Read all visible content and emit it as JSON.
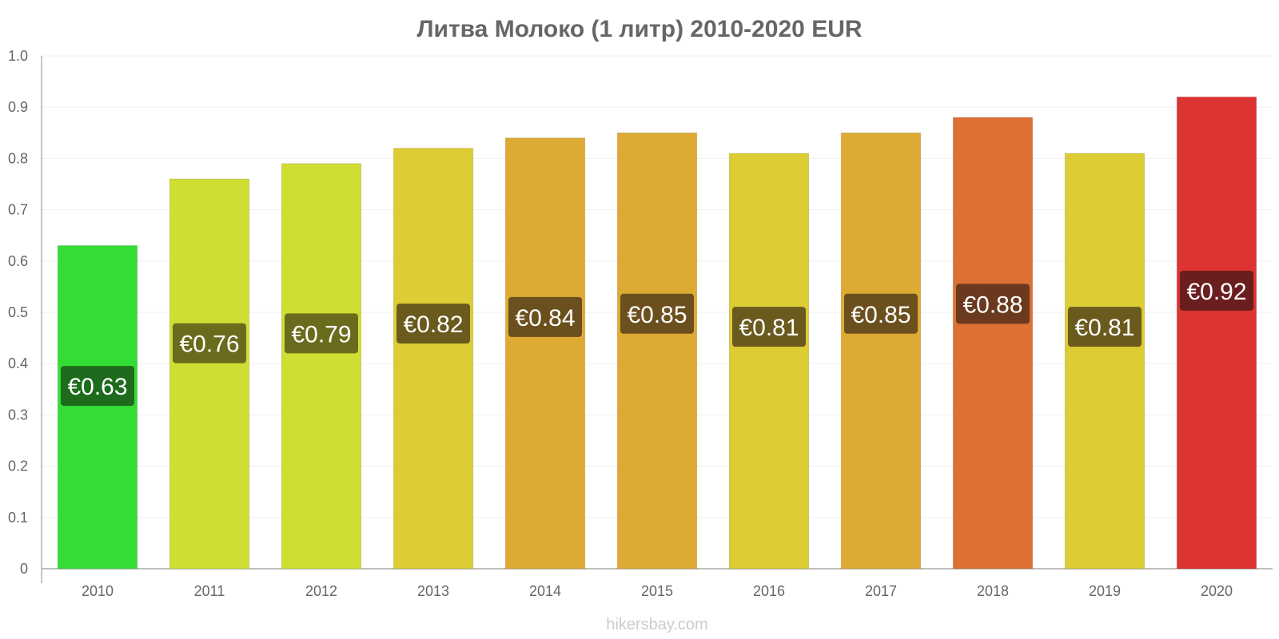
{
  "chart_data": {
    "type": "bar",
    "title": "Литва Молоко (1 литр) 2010-2020 EUR",
    "xlabel": "",
    "ylabel": "",
    "ylim": [
      0,
      1.0
    ],
    "yticks": [
      "0",
      "0.1",
      "0.2",
      "0.3",
      "0.4",
      "0.5",
      "0.6",
      "0.7",
      "0.8",
      "0.9",
      "1.0"
    ],
    "grid": true,
    "categories": [
      "2010",
      "2011",
      "2012",
      "2013",
      "2014",
      "2015",
      "2016",
      "2017",
      "2018",
      "2019",
      "2020"
    ],
    "values": [
      0.63,
      0.76,
      0.79,
      0.82,
      0.84,
      0.85,
      0.81,
      0.85,
      0.88,
      0.81,
      0.92
    ],
    "data_labels": [
      "€0.63",
      "€0.76",
      "€0.79",
      "€0.82",
      "€0.84",
      "€0.85",
      "€0.81",
      "€0.85",
      "€0.88",
      "€0.81",
      "€0.92"
    ],
    "bar_colors": [
      "#33dd33",
      "#d0dd33",
      "#d0dd33",
      "#ddcc33",
      "#ddaa33",
      "#ddaa33",
      "#ddcc33",
      "#ddaa33",
      "#dd7033",
      "#ddcc33",
      "#dd3333"
    ],
    "label_bg_colors": [
      "#1e6b1e",
      "#6b6b1e",
      "#6b6b1e",
      "#6b5a1e",
      "#6b501e",
      "#6b501e",
      "#6b5a1e",
      "#6b501e",
      "#6b3a1e",
      "#6b5a1e",
      "#6b1e1e"
    ],
    "credit": "hikersbay.com"
  }
}
